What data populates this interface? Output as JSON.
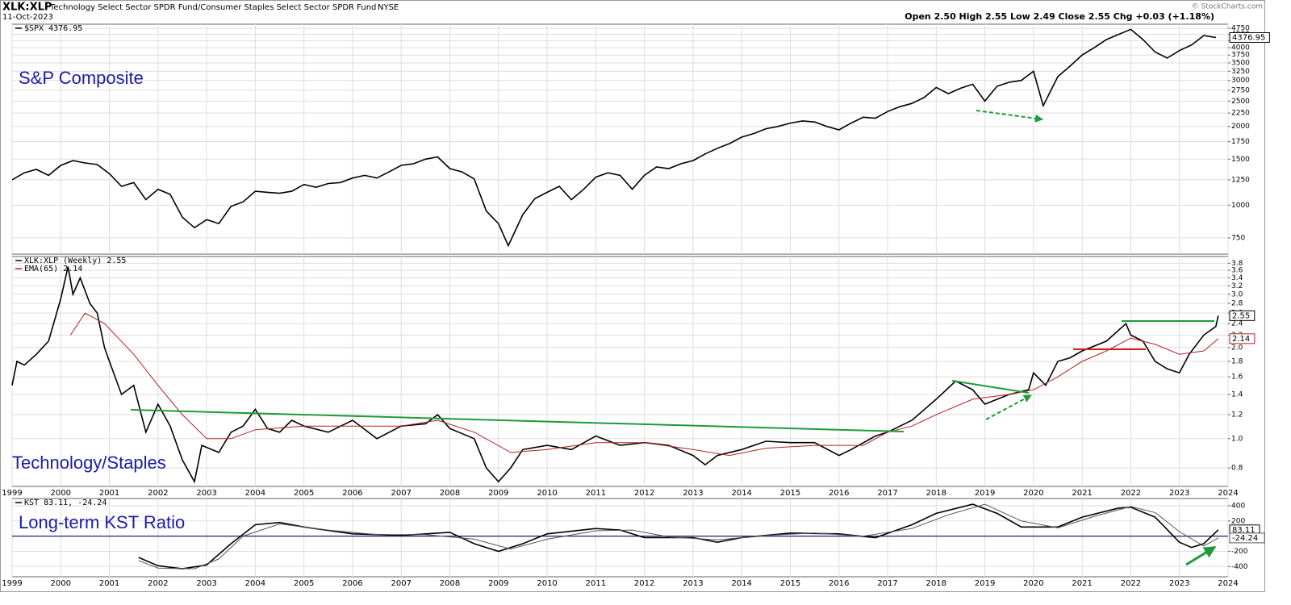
{
  "header": {
    "symbol": "XLK:XLP",
    "description": "Technology Select Sector SPDR Fund/Consumer Staples Select Sector SPDR Fund",
    "exchange": "NYSE",
    "date": "11-Oct-2023",
    "quote": "Open 2.50 High 2.55 Low 2.49 Close 2.55 Chg +0.03 (+1.18%)",
    "credit": "© StockCharts.com"
  },
  "chart_data": [
    {
      "type": "line",
      "log_scale": true,
      "grid": true,
      "annotation": "S&P Composite",
      "xlim": [
        1999,
        2024
      ],
      "xticks": [
        1999,
        2000,
        2001,
        2002,
        2003,
        2004,
        2005,
        2006,
        2007,
        2008,
        2009,
        2010,
        2011,
        2012,
        2013,
        2014,
        2015,
        2016,
        2017,
        2018,
        2019,
        2020,
        2021,
        2022,
        2023,
        2024
      ],
      "ylim": [
        650,
        4920
      ],
      "yticks": [
        750,
        1000,
        1250,
        1500,
        1750,
        2000,
        2250,
        2500,
        2750,
        3000,
        3250,
        3500,
        3750,
        4000,
        4250,
        4500,
        4750
      ],
      "series": [
        {
          "name": "$SPX 4376.95",
          "color": "#000000",
          "x": [
            1999,
            1999.25,
            1999.5,
            1999.75,
            2000,
            2000.25,
            2000.5,
            2000.75,
            2001,
            2001.25,
            2001.5,
            2001.75,
            2002,
            2002.25,
            2002.5,
            2002.75,
            2003,
            2003.25,
            2003.5,
            2003.75,
            2004,
            2004.25,
            2004.5,
            2004.75,
            2005,
            2005.25,
            2005.5,
            2005.75,
            2006,
            2006.25,
            2006.5,
            2006.75,
            2007,
            2007.25,
            2007.5,
            2007.75,
            2008,
            2008.25,
            2008.5,
            2008.75,
            2009,
            2009.2,
            2009.5,
            2009.75,
            2010,
            2010.25,
            2010.5,
            2010.75,
            2011,
            2011.25,
            2011.5,
            2011.75,
            2012,
            2012.25,
            2012.5,
            2012.75,
            2013,
            2013.25,
            2013.5,
            2013.75,
            2014,
            2014.25,
            2014.5,
            2014.75,
            2015,
            2015.25,
            2015.5,
            2015.75,
            2016,
            2016.25,
            2016.5,
            2016.75,
            2017,
            2017.25,
            2017.5,
            2017.75,
            2018,
            2018.25,
            2018.5,
            2018.75,
            2019,
            2019.25,
            2019.5,
            2019.75,
            2020,
            2020.2,
            2020.5,
            2020.75,
            2021,
            2021.25,
            2021.5,
            2021.75,
            2022,
            2022.25,
            2022.5,
            2022.75,
            2023,
            2023.25,
            2023.5,
            2023.75
          ],
          "values": [
            1250,
            1330,
            1370,
            1300,
            1420,
            1480,
            1450,
            1430,
            1320,
            1180,
            1220,
            1050,
            1150,
            1100,
            900,
            820,
            880,
            850,
            990,
            1030,
            1130,
            1120,
            1110,
            1130,
            1200,
            1170,
            1210,
            1220,
            1270,
            1300,
            1270,
            1340,
            1420,
            1440,
            1500,
            1530,
            1380,
            1340,
            1260,
            950,
            850,
            700,
            920,
            1060,
            1120,
            1180,
            1050,
            1150,
            1280,
            1330,
            1300,
            1150,
            1300,
            1400,
            1380,
            1440,
            1480,
            1570,
            1650,
            1720,
            1820,
            1880,
            1960,
            2000,
            2060,
            2100,
            2080,
            2000,
            1940,
            2060,
            2170,
            2150,
            2280,
            2380,
            2450,
            2580,
            2820,
            2670,
            2800,
            2900,
            2500,
            2850,
            2950,
            3000,
            3250,
            2400,
            3100,
            3400,
            3750,
            4000,
            4300,
            4500,
            4700,
            4300,
            3850,
            3650,
            3900,
            4100,
            4450,
            4376.95
          ]
        }
      ]
    },
    {
      "type": "line",
      "log_scale": true,
      "grid": true,
      "annotation": "Technology/Staples",
      "xlim": [
        1999,
        2024
      ],
      "xticks": [
        1999,
        2000,
        2001,
        2002,
        2003,
        2004,
        2005,
        2006,
        2007,
        2008,
        2009,
        2010,
        2011,
        2012,
        2013,
        2014,
        2015,
        2016,
        2017,
        2018,
        2019,
        2020,
        2021,
        2022,
        2023,
        2024
      ],
      "ylim": [
        0.695,
        4.0
      ],
      "yticks": [
        0.8,
        {
          "value": 1,
          "label": "1.0"
        },
        1.2,
        1.4,
        1.6,
        1.8,
        {
          "value": 2,
          "label": "2.0"
        },
        2.2,
        2.4,
        2.6,
        2.8,
        {
          "value": 3,
          "label": "3.0"
        },
        3.2,
        3.4,
        3.6,
        3.8
      ],
      "series": [
        {
          "name": "XLK:XLP (Weekly) 2.55",
          "color": "#000000",
          "x": [
            1999,
            1999.1,
            1999.25,
            1999.5,
            1999.75,
            2000,
            2000.15,
            2000.25,
            2000.4,
            2000.6,
            2000.75,
            2000.9,
            2001,
            2001.25,
            2001.5,
            2001.75,
            2002,
            2002.25,
            2002.5,
            2002.75,
            2002.9,
            2003.25,
            2003.5,
            2003.75,
            2004,
            2004.25,
            2004.5,
            2004.75,
            2005,
            2005.5,
            2006,
            2006.5,
            2007,
            2007.5,
            2007.75,
            2008,
            2008.5,
            2008.75,
            2009,
            2009.25,
            2009.5,
            2010,
            2010.5,
            2011,
            2011.5,
            2012,
            2012.5,
            2013,
            2013.25,
            2013.5,
            2014,
            2014.5,
            2015,
            2015.5,
            2016,
            2016.25,
            2016.75,
            2017,
            2017.5,
            2018,
            2018.4,
            2018.75,
            2019,
            2019.5,
            2019.9,
            2020,
            2020.25,
            2020.5,
            2020.75,
            2021,
            2021.5,
            2021.9,
            2022,
            2022.25,
            2022.5,
            2022.75,
            2023,
            2023.2,
            2023.5,
            2023.75,
            2023.8
          ],
          "values": [
            1.5,
            1.8,
            1.75,
            1.9,
            2.1,
            2.9,
            3.7,
            3.0,
            3.4,
            2.8,
            2.6,
            2.0,
            1.8,
            1.4,
            1.5,
            1.05,
            1.3,
            1.1,
            0.85,
            0.72,
            0.95,
            0.9,
            1.05,
            1.1,
            1.25,
            1.08,
            1.05,
            1.15,
            1.1,
            1.05,
            1.15,
            1.0,
            1.1,
            1.12,
            1.2,
            1.08,
            1.0,
            0.8,
            0.72,
            0.8,
            0.92,
            0.95,
            0.92,
            1.02,
            0.95,
            0.97,
            0.95,
            0.88,
            0.82,
            0.88,
            0.92,
            0.98,
            0.97,
            0.97,
            0.88,
            0.92,
            1.02,
            1.05,
            1.15,
            1.35,
            1.55,
            1.45,
            1.3,
            1.4,
            1.45,
            1.65,
            1.5,
            1.8,
            1.85,
            1.95,
            2.1,
            2.4,
            2.2,
            2.1,
            1.8,
            1.7,
            1.65,
            1.9,
            2.2,
            2.35,
            2.55
          ]
        },
        {
          "name": "EMA(65) 2.14",
          "color": "#b22222",
          "x": [
            2000.2,
            2000.5,
            2000.9,
            2001.5,
            2002,
            2002.5,
            2003,
            2003.5,
            2004,
            2005,
            2006,
            2007,
            2007.75,
            2008.5,
            2009.25,
            2010,
            2011,
            2012,
            2013,
            2013.75,
            2014.5,
            2015.5,
            2016.5,
            2017,
            2017.5,
            2018,
            2018.75,
            2019.5,
            2020,
            2020.5,
            2021,
            2021.5,
            2022,
            2022.5,
            2023,
            2023.5,
            2023.8
          ],
          "values": [
            2.2,
            2.6,
            2.4,
            1.9,
            1.5,
            1.2,
            1.0,
            1.0,
            1.07,
            1.1,
            1.1,
            1.1,
            1.15,
            1.05,
            0.9,
            0.92,
            0.97,
            0.97,
            0.92,
            0.88,
            0.93,
            0.95,
            0.95,
            1.05,
            1.1,
            1.2,
            1.35,
            1.4,
            1.45,
            1.6,
            1.8,
            1.95,
            2.15,
            2.05,
            1.9,
            1.95,
            2.14
          ]
        }
      ]
    },
    {
      "type": "line",
      "log_scale": false,
      "grid": true,
      "annotation": "Long-term KST Ratio",
      "legend": "KST 83.11, -24.24",
      "reference_line": 0,
      "xlim": [
        1999,
        2024
      ],
      "xticks": [
        1999,
        2000,
        2001,
        2002,
        2003,
        2004,
        2005,
        2006,
        2007,
        2008,
        2009,
        2010,
        2011,
        2012,
        2013,
        2014,
        2015,
        2016,
        2017,
        2018,
        2019,
        2020,
        2021,
        2022,
        2023,
        2024
      ],
      "ylim": [
        -535,
        495
      ],
      "yticks": [
        -400,
        -200,
        200,
        400
      ],
      "series": [
        {
          "color": "#000000",
          "x": [
            2001.6,
            2002,
            2002.5,
            2003,
            2003.5,
            2004,
            2004.5,
            2005,
            2006,
            2007,
            2008,
            2008.5,
            2009,
            2009.5,
            2010,
            2011,
            2011.5,
            2012,
            2013,
            2013.5,
            2014,
            2015,
            2016,
            2016.75,
            2017.5,
            2018,
            2018.75,
            2019.25,
            2019.75,
            2020.5,
            2021,
            2021.75,
            2022,
            2022.5,
            2023,
            2023.25,
            2023.5,
            2023.8
          ],
          "values": [
            -280,
            -390,
            -430,
            -380,
            -100,
            150,
            180,
            120,
            30,
            10,
            50,
            -100,
            -200,
            -100,
            30,
            100,
            80,
            -20,
            -20,
            -80,
            -20,
            40,
            30,
            -20,
            150,
            300,
            420,
            300,
            120,
            120,
            250,
            370,
            380,
            250,
            -80,
            -150,
            -100,
            83.11
          ]
        },
        {
          "color": "#555555",
          "x": [
            2001.6,
            2002,
            2002.75,
            2003.25,
            2003.75,
            2004.5,
            2005.5,
            2006.5,
            2007.5,
            2008.5,
            2009.25,
            2010,
            2011,
            2011.75,
            2012.5,
            2013.5,
            2014.5,
            2015.5,
            2016.5,
            2017.5,
            2018.25,
            2019,
            2019.75,
            2020.5,
            2021.25,
            2022,
            2022.5,
            2023,
            2023.5,
            2023.8
          ],
          "values": [
            -320,
            -420,
            -430,
            -300,
            0,
            160,
            80,
            20,
            20,
            -40,
            -170,
            -40,
            70,
            80,
            -10,
            -50,
            10,
            40,
            0,
            100,
            280,
            420,
            200,
            110,
            260,
            390,
            310,
            60,
            -130,
            -24.24
          ]
        }
      ]
    }
  ]
}
